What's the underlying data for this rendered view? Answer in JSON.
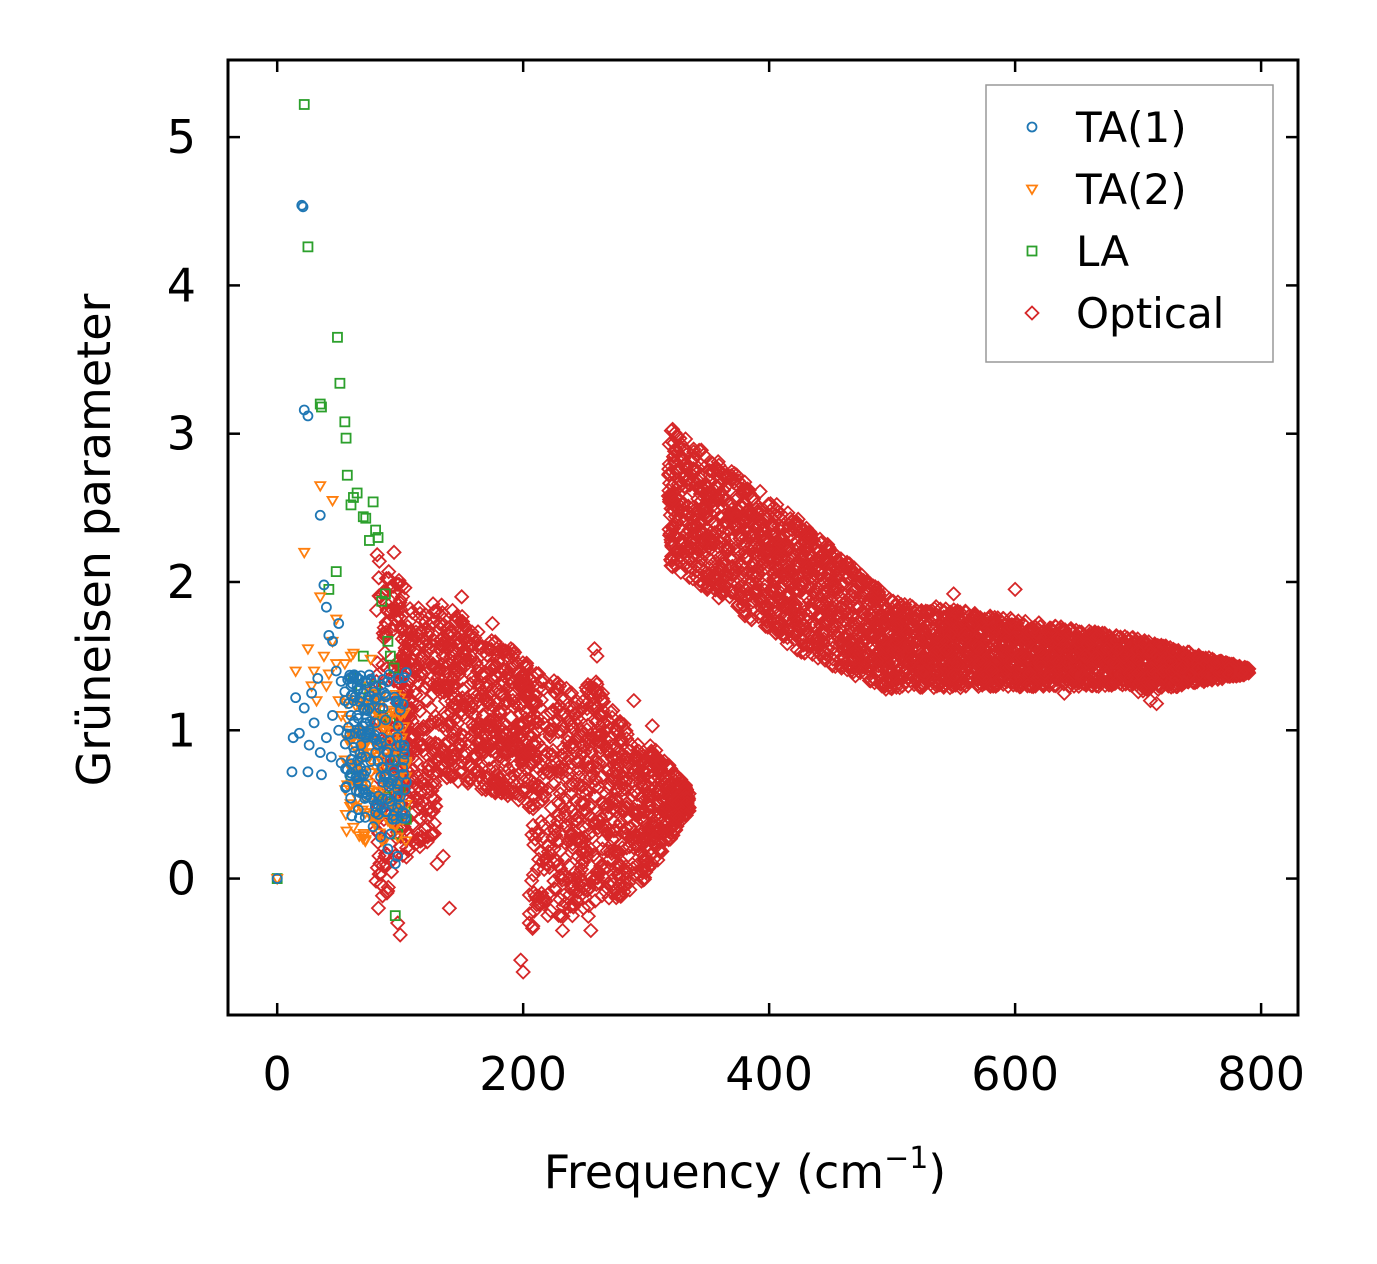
{
  "chart_data": {
    "type": "scatter",
    "xlabel": "Frequency (cm",
    "xlabel_exponent": "−1",
    "xlabel_suffix": ")",
    "ylabel": "Grüneisen parameter",
    "xlim": [
      -40,
      830
    ],
    "ylim": [
      -0.92,
      5.52
    ],
    "xticks": [
      0,
      200,
      400,
      600,
      800
    ],
    "yticks": [
      0,
      1,
      2,
      3,
      4,
      5
    ],
    "legend_position": "top-right",
    "series": [
      {
        "name": "TA(1)",
        "marker": "circle",
        "color": "#1f77b4",
        "x": [
          0,
          20,
          21,
          22,
          25,
          28,
          33,
          35,
          38,
          40,
          42,
          45,
          48,
          50,
          52,
          55,
          58,
          60,
          62,
          65,
          68,
          70,
          72,
          75,
          78,
          80,
          82,
          85,
          88,
          90,
          92,
          95,
          98,
          100,
          102,
          105,
          13,
          15,
          18,
          22,
          26,
          30,
          35,
          40,
          45,
          50,
          55,
          60,
          65,
          70,
          75,
          80,
          85,
          90,
          95,
          100,
          12,
          25,
          36,
          44,
          52,
          58,
          64,
          70,
          76,
          82,
          88,
          94,
          100,
          104,
          72,
          78,
          84,
          90,
          96,
          102,
          60,
          66,
          74,
          86,
          92,
          98
        ],
        "y": [
          0,
          4.54,
          4.53,
          3.16,
          3.12,
          1.25,
          1.35,
          2.45,
          1.98,
          1.83,
          1.64,
          1.6,
          1.4,
          1.72,
          1.33,
          1.26,
          1.18,
          1.35,
          1.2,
          1.1,
          0.9,
          1.15,
          1.05,
          1.0,
          0.95,
          0.85,
          0.9,
          0.75,
          0.7,
          0.65,
          0.8,
          0.7,
          0.6,
          0.55,
          0.75,
          0.65,
          0.95,
          1.22,
          0.98,
          1.15,
          0.9,
          1.05,
          0.85,
          0.95,
          1.1,
          1.0,
          1.2,
          1.1,
          1.3,
          1.25,
          1.15,
          1.05,
          0.95,
          0.85,
          0.8,
          0.9,
          0.72,
          0.72,
          0.7,
          0.82,
          0.78,
          1.02,
          0.98,
          0.6,
          0.55,
          0.5,
          0.45,
          0.4,
          0.5,
          0.6,
          0.58,
          0.35,
          0.28,
          0.2,
          0.1,
          0.45,
          1.3,
          1.28,
          1.2,
          0.65,
          0.3,
          0.15
        ]
      },
      {
        "name": "TA(2)",
        "marker": "triangle-down",
        "color": "#ff7f0e",
        "x": [
          0,
          15,
          22,
          25,
          30,
          35,
          40,
          45,
          50,
          55,
          60,
          65,
          70,
          75,
          80,
          85,
          90,
          95,
          100,
          105,
          28,
          32,
          38,
          42,
          48,
          52,
          58,
          62,
          68,
          72,
          78,
          82,
          88,
          92,
          98,
          102,
          45,
          55,
          65,
          75,
          85,
          95,
          35,
          48,
          62,
          76,
          90
        ],
        "y": [
          0,
          1.4,
          2.2,
          1.55,
          1.4,
          2.65,
          1.3,
          2.55,
          1.2,
          1.45,
          1.5,
          1.0,
          0.9,
          0.85,
          0.75,
          0.7,
          0.65,
          0.6,
          0.55,
          0.5,
          1.3,
          1.2,
          1.5,
          1.38,
          1.45,
          1.1,
          1.0,
          0.95,
          0.8,
          1.3,
          1.25,
          1.1,
          1.0,
          0.5,
          0.45,
          0.4,
          1.6,
          0.8,
          0.7,
          0.6,
          0.55,
          0.35,
          1.9,
          1.75,
          1.52,
          1.48,
          1.1
        ]
      },
      {
        "name": "LA",
        "marker": "square",
        "color": "#2ca02c",
        "x": [
          0,
          22,
          25,
          35,
          36,
          42,
          48,
          49,
          51,
          55,
          56,
          57,
          60,
          62,
          65,
          70,
          72,
          75,
          78,
          80,
          82,
          85,
          88,
          90,
          92,
          95,
          98,
          100,
          105,
          62,
          68,
          74,
          80,
          86,
          92,
          98,
          104,
          60,
          70,
          80,
          88,
          96
        ],
        "y": [
          0,
          5.22,
          4.26,
          3.2,
          3.18,
          1.95,
          2.07,
          3.65,
          3.34,
          3.08,
          2.97,
          2.72,
          2.52,
          2.57,
          2.6,
          2.44,
          2.43,
          2.28,
          2.54,
          2.35,
          2.3,
          1.87,
          1.92,
          1.6,
          1.5,
          1.42,
          0.8,
          0.6,
          0.4,
          1.35,
          1.28,
          1.2,
          1.15,
          1.1,
          1.05,
          0.3,
          0.45,
          0.68,
          1.5,
          1.3,
          0.55,
          -0.25
        ]
      },
      {
        "name": "Optical",
        "marker": "diamond",
        "color": "#d62728",
        "bands": [
          {
            "x0": 80,
            "x1": 110,
            "lo": [
              -0.38,
              0.5
            ],
            "hi": [
              2.22,
              1.9
            ]
          },
          {
            "x0": 100,
            "x1": 130,
            "lo": [
              0.1,
              0.3
            ],
            "hi": [
              1.82,
              1.86
            ]
          },
          {
            "x0": 130,
            "x1": 205,
            "lo": [
              0.7,
              0.5
            ],
            "hi": [
              1.88,
              1.48
            ]
          },
          {
            "x0": 205,
            "x1": 250,
            "lo": [
              -0.35,
              -0.2
            ],
            "hi": [
              1.45,
              1.2
            ]
          },
          {
            "x0": 250,
            "x1": 300,
            "lo": [
              -0.3,
              0.0
            ],
            "hi": [
              1.45,
              0.82
            ]
          },
          {
            "x0": 300,
            "x1": 335,
            "lo": [
              0.0,
              0.45
            ],
            "hi": [
              0.95,
              0.6
            ]
          },
          {
            "x0": 318,
            "x1": 420,
            "lo": [
              2.12,
              1.55
            ],
            "hi": [
              3.05,
              2.45
            ]
          },
          {
            "x0": 420,
            "x1": 500,
            "lo": [
              1.55,
              1.25
            ],
            "hi": [
              2.45,
              1.88
            ]
          },
          {
            "x0": 500,
            "x1": 700,
            "lo": [
              1.28,
              1.3
            ],
            "hi": [
              1.88,
              1.62
            ]
          },
          {
            "x0": 700,
            "x1": 790,
            "lo": [
              1.25,
              1.38
            ],
            "hi": [
              1.62,
              1.42
            ]
          }
        ],
        "outliers_x": [
          200,
          198,
          205,
          215,
          225,
          232,
          240,
          255,
          260,
          290,
          305,
          258,
          130,
          135,
          140,
          100,
          98,
          95,
          150,
          175,
          190,
          550,
          600,
          610,
          640,
          710,
          715
        ],
        "outliers_y": [
          -0.63,
          -0.55,
          -0.3,
          -0.1,
          0.2,
          -0.35,
          -0.25,
          -0.35,
          1.5,
          1.2,
          1.03,
          1.55,
          0.1,
          0.15,
          -0.2,
          -0.38,
          -0.3,
          2.2,
          1.9,
          1.72,
          1.55,
          1.92,
          1.95,
          1.3,
          1.25,
          1.2,
          1.18
        ]
      }
    ]
  }
}
